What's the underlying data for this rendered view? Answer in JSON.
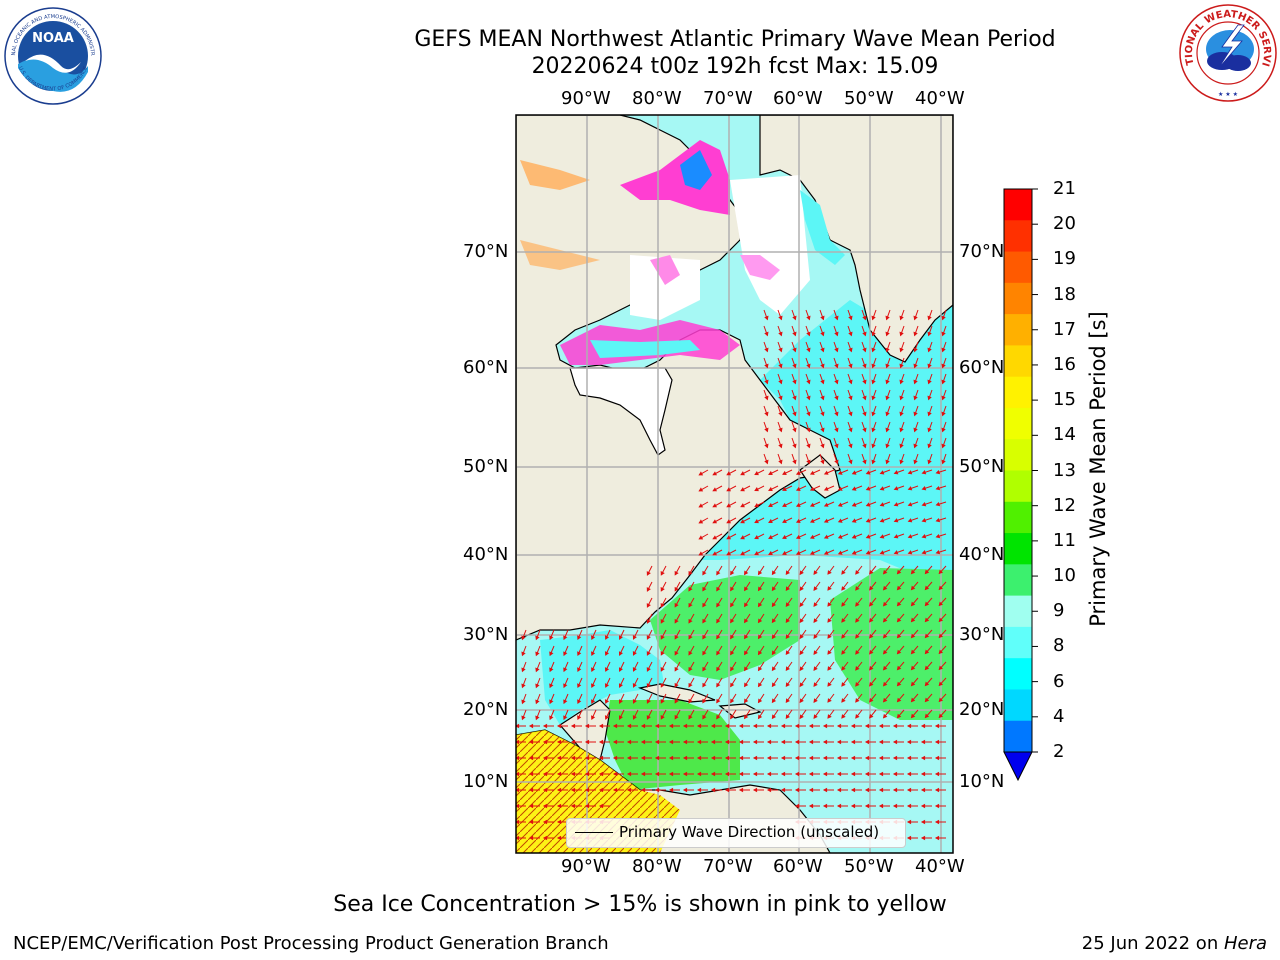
{
  "header": {
    "title_line1": "GEFS MEAN Northwest Atlantic Primary Wave Mean Period",
    "title_line2": "20220624 t00z 192h fcst   Max: 15.09"
  },
  "logos": {
    "noaa": {
      "text": "NOAA",
      "ring_top": "NATIONAL OCEANIC AND ATMOSPHERIC ADMINISTRATION",
      "ring_bottom": "U.S. DEPARTMENT OF COMMERCE"
    },
    "nws": {
      "ring": "NATIONAL WEATHER SERVICE"
    }
  },
  "map": {
    "lon_labels": [
      "90°W",
      "80°W",
      "70°W",
      "60°W",
      "50°W",
      "40°W"
    ],
    "lat_labels": [
      "70°N",
      "60°N",
      "50°N",
      "40°N",
      "30°N",
      "20°N",
      "10°N"
    ],
    "legend_text": "Primary Wave Direction (unscaled)",
    "colors": {
      "land": "#efedde",
      "ocean_short_period": "#5cf6f6",
      "ocean_mid_period": "#a6f8f4",
      "ocean_swell": "#4def6a",
      "sea_ice": "#ff3ed2",
      "arrow": "#e01010",
      "grid": "#b0b0b0"
    }
  },
  "colorbar": {
    "label": "Primary Wave Mean Period [s]",
    "ticks": [
      "21",
      "20",
      "19",
      "18",
      "17",
      "16",
      "15",
      "14",
      "13",
      "12",
      "11",
      "10",
      "9",
      "8",
      "6",
      "4",
      "2"
    ],
    "colors": [
      "#ff0000",
      "#ff3000",
      "#ff5a00",
      "#ff8400",
      "#ffb000",
      "#ffd800",
      "#fff200",
      "#f0ff00",
      "#d8ff00",
      "#b0ff00",
      "#50f000",
      "#00e400",
      "#3cf06e",
      "#a0fff0",
      "#60fffa",
      "#00ffff",
      "#00d8ff",
      "#0078ff"
    ],
    "underflow_color": "#0000ee"
  },
  "footer": {
    "caption": "Sea Ice Concentration > 15% is shown in pink to yellow",
    "credit": "NCEP/EMC/Verification Post Processing Product Generation Branch",
    "date_prefix": "25 Jun 2022 on ",
    "date_host": "Hera"
  }
}
